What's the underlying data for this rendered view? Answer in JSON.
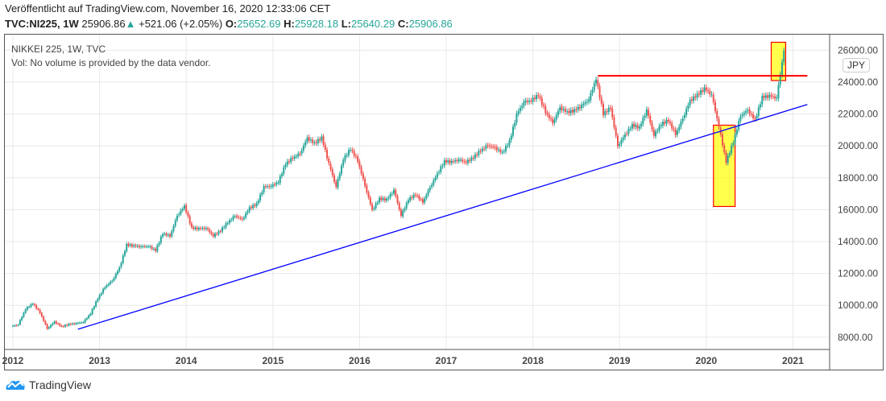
{
  "header": {
    "published": "Veröffentlicht auf TradingView.com, November 16, 2020 12:33:06 CET",
    "symbol": "TVC:NI225, 1W",
    "last": "25906.86",
    "change": "+521.06 (+2.05%)",
    "o_label": "O:",
    "o": "25652.69",
    "h_label": "H:",
    "h": "25928.18",
    "l_label": "L:",
    "l": "25640.29",
    "c_label": "C:",
    "c": "25906.86"
  },
  "legend": {
    "title": "NIKKEI 225, 1W, TVC",
    "vol": "Vol: No volume is provided by the data vendor."
  },
  "currency": "JPY",
  "footer": {
    "brand": "TradingView"
  },
  "colors": {
    "up": "#26a69a",
    "down": "#ef5350",
    "trend": "#0000ff",
    "resistance": "#ff0000",
    "highlight": "#ffff00"
  },
  "chart_data": {
    "type": "candlestick",
    "interval": "1W",
    "ylim": [
      7400,
      26800
    ],
    "xlim": [
      "2012-01",
      "2021-05"
    ],
    "grid": true,
    "y_ticks": [
      "8000.00",
      "10000.00",
      "12000.00",
      "14000.00",
      "16000.00",
      "18000.00",
      "20000.00",
      "22000.00",
      "24000.00",
      "26000.00"
    ],
    "x_ticks": [
      "2012",
      "2013",
      "2014",
      "2015",
      "2016",
      "2017",
      "2018",
      "2019",
      "2020",
      "2021"
    ],
    "start": "2012-01",
    "monthly_closes": [
      8800,
      9720,
      10080,
      9520,
      8540,
      9000,
      8700,
      8840,
      8870,
      8930,
      9450,
      10400,
      11140,
      11560,
      12400,
      13860,
      13770,
      13680,
      13670,
      13390,
      14460,
      14330,
      15660,
      16290,
      14910,
      14840,
      14830,
      14300,
      14630,
      15160,
      15620,
      15420,
      16170,
      16410,
      17460,
      17450,
      17670,
      18800,
      19210,
      19520,
      20560,
      20240,
      20590,
      18890,
      17390,
      19080,
      19750,
      19030,
      17520,
      16030,
      16760,
      16670,
      17230,
      15580,
      16570,
      16890,
      16450,
      17430,
      18310,
      19110,
      19040,
      19120,
      18910,
      19200,
      19650,
      20030,
      19930,
      19650,
      20360,
      22010,
      22720,
      22760,
      23100,
      22070,
      21450,
      22470,
      22200,
      22300,
      22550,
      22870,
      24120,
      21920,
      22350,
      20010,
      20770,
      21390,
      21210,
      22260,
      20600,
      21280,
      21520,
      20700,
      21760,
      22930,
      23290,
      23660,
      23200,
      21140,
      18920,
      20190,
      21880,
      22290,
      21710,
      23140,
      23180,
      22980,
      25906
    ],
    "annotations": [
      {
        "type": "trendline",
        "from": [
          "2012-10",
          8500
        ],
        "to": [
          "2021-03",
          22600
        ]
      },
      {
        "type": "horizontal",
        "from": [
          "2018-10",
          24400
        ],
        "to": [
          "2021-03",
          24400
        ]
      },
      {
        "type": "box",
        "from": [
          "2020-02",
          16200
        ],
        "to": [
          "2020-05",
          21300
        ]
      },
      {
        "type": "box",
        "from": [
          "2020-10",
          24100
        ],
        "to": [
          "2020-12",
          26500
        ]
      }
    ]
  }
}
